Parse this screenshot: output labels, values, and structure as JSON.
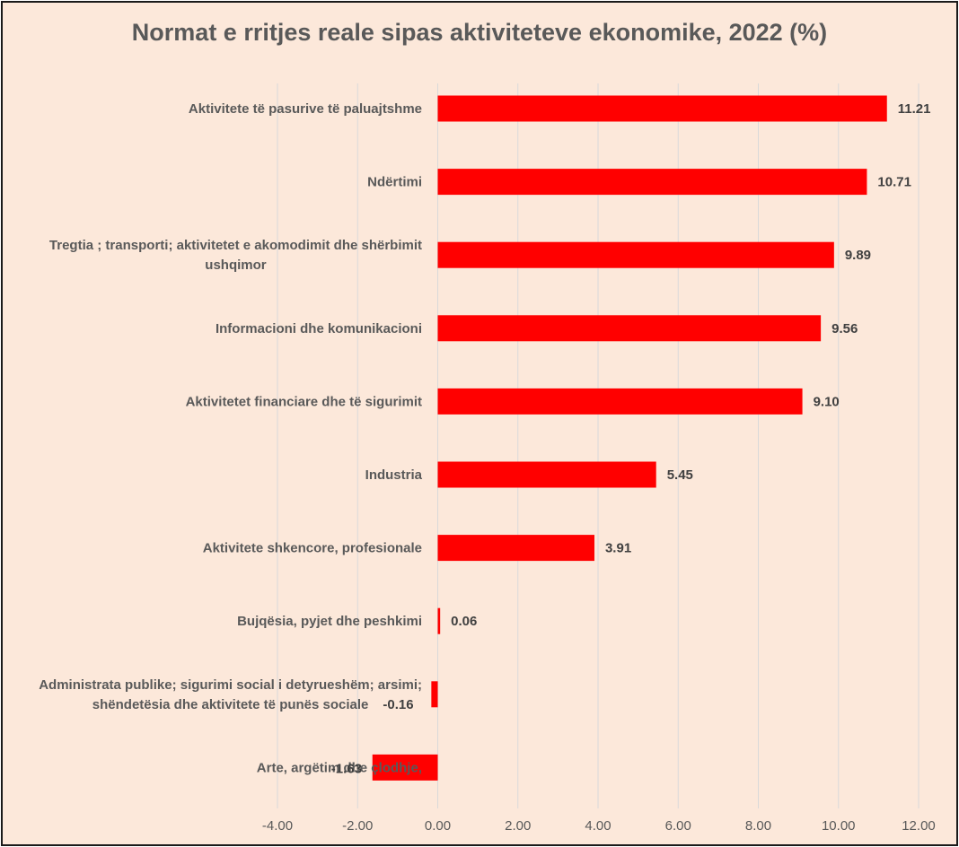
{
  "chart_data": {
    "type": "bar",
    "orientation": "horizontal",
    "title": "Normat e rritjes reale sipas aktiviteteve ekonomike, 2022 (%)",
    "xlabel": "",
    "ylabel": "",
    "xlim": [
      -4,
      12
    ],
    "x_ticks": [
      -4,
      -2,
      0,
      2,
      4,
      6,
      8,
      10,
      12
    ],
    "x_tick_labels": [
      "-4.00",
      "-2.00",
      "0.00",
      "2.00",
      "4.00",
      "6.00",
      "8.00",
      "10.00",
      "12.00"
    ],
    "grid": true,
    "bar_color": "#ff0000",
    "categories": [
      [
        "Aktivitete të pasurive të paluajtshme"
      ],
      [
        "Ndërtimi"
      ],
      [
        "Tregtia ; transporti; aktivitetet e akomodimit dhe shërbimit",
        "ushqimor"
      ],
      [
        "Informacioni dhe komunikacioni"
      ],
      [
        "Aktivitetet financiare dhe të sigurimit"
      ],
      [
        "Industria"
      ],
      [
        "Aktivitete shkencore, profesionale"
      ],
      [
        "Bujqësia, pyjet dhe peshkimi"
      ],
      [
        "Administrata publike; sigurimi social i detyrueshëm; arsimi;",
        "shëndetësia dhe aktivitete të punës sociale"
      ],
      [
        "Arte, argëtim dhe çlodhje,"
      ]
    ],
    "values": [
      11.21,
      10.71,
      9.89,
      9.56,
      9.1,
      5.45,
      3.91,
      0.06,
      -0.16,
      -1.63
    ],
    "value_labels": [
      "11.21",
      "10.71",
      "9.89",
      "9.56",
      "9.10",
      "5.45",
      "3.91",
      "0.06",
      "-0.16",
      "-1.63"
    ]
  }
}
